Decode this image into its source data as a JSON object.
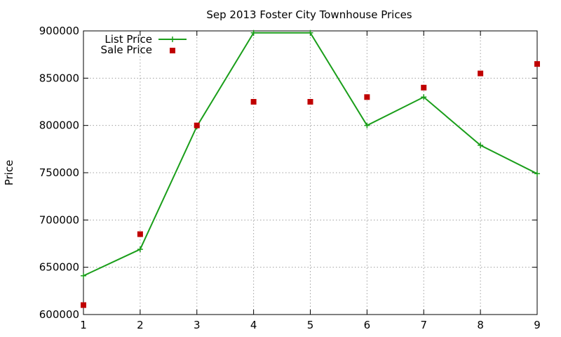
{
  "chart_data": {
    "type": "line",
    "title": "Sep 2013 Foster City Townhouse Prices",
    "xlabel": "",
    "ylabel": "Price",
    "xlim": [
      1,
      9
    ],
    "ylim": [
      600000,
      900000
    ],
    "x_ticks": [
      1,
      2,
      3,
      4,
      5,
      6,
      7,
      8,
      9
    ],
    "y_ticks": [
      600000,
      650000,
      700000,
      750000,
      800000,
      850000,
      900000
    ],
    "grid": true,
    "legend_position": "top-left",
    "series": [
      {
        "name": "List Price",
        "style": "linespoints",
        "marker": "plus",
        "color": "#1a9e1a",
        "x": [
          1,
          2,
          3,
          4,
          5,
          6,
          7,
          8,
          9
        ],
        "values": [
          641000,
          669000,
          799000,
          898000,
          898000,
          800000,
          830000,
          779000,
          749000
        ]
      },
      {
        "name": "Sale Price",
        "style": "points",
        "marker": "square",
        "color": "#c00000",
        "x": [
          1,
          2,
          3,
          4,
          5,
          6,
          7,
          8,
          9
        ],
        "values": [
          610000,
          685000,
          800000,
          825000,
          825000,
          830000,
          840000,
          855000,
          865000
        ]
      }
    ]
  }
}
